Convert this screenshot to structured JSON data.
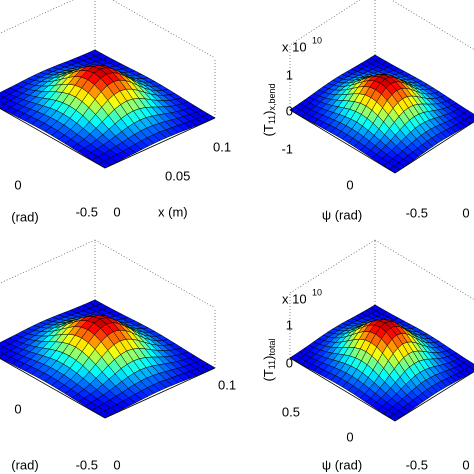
{
  "panels": [
    {
      "ticks": [
        "0",
        "(rad)",
        "-0.5",
        "0",
        "0.05",
        "0.1",
        "x (m)"
      ]
    },
    {
      "exponent": {
        "base": "x 10",
        "power": "10"
      },
      "ticks": [
        "1",
        "0",
        "-1",
        "0",
        "ψ (rad)",
        "-0.5",
        "0"
      ],
      "ylabel": {
        "open": "(T",
        "sub1": "11",
        "close": ")",
        "sub2": "x,bend"
      }
    },
    {
      "ticks": [
        "0",
        "(rad)",
        "-0.5",
        "0",
        "0.1"
      ]
    },
    {
      "exponent": {
        "base": "x 10",
        "power": "10"
      },
      "ticks": [
        "1",
        "0",
        "0.5",
        "0",
        "ψ (rad)",
        "-0.5",
        "0"
      ],
      "ylabel": {
        "open": "(T",
        "sub1": "11",
        "close": ")",
        "sub2": "total"
      }
    }
  ]
}
